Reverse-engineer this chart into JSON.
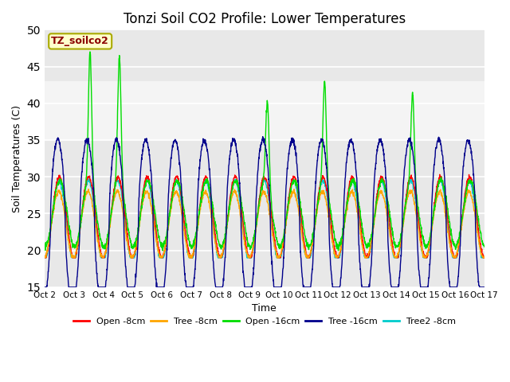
{
  "title": "Tonzi Soil CO2 Profile: Lower Temperatures",
  "xlabel": "Time",
  "ylabel": "Soil Temperatures (C)",
  "ylim": [
    15,
    50
  ],
  "yticks": [
    15,
    20,
    25,
    30,
    35,
    40,
    45,
    50
  ],
  "annotation": "TZ_soilco2",
  "annotation_color": "#8B0000",
  "annotation_bg": "#FFFFCC",
  "annotation_edge": "#AAAA00",
  "series_colors": [
    "#FF0000",
    "#FFA500",
    "#00DD00",
    "#00008B",
    "#00CCCC"
  ],
  "series_labels": [
    "Open -8cm",
    "Tree -8cm",
    "Open -16cm",
    "Tree -16cm",
    "Tree2 -8cm"
  ],
  "x_tick_labels": [
    "Oct 2",
    "Oct 3",
    "Oct 4",
    "Oct 5",
    "Oct 6",
    "Oct 7",
    "Oct 8",
    "Oct 9",
    "Oct 10",
    "Oct 11",
    "Oct 12",
    "Oct 13",
    "Oct 14",
    "Oct 15",
    "Oct 16",
    "Oct 17"
  ],
  "background_color": "#FFFFFF",
  "plot_bg_color": "#E8E8E8",
  "grid_color": "#FFFFFF",
  "shaded_band_lo": 35,
  "shaded_band_hi": 43,
  "title_fontsize": 12
}
